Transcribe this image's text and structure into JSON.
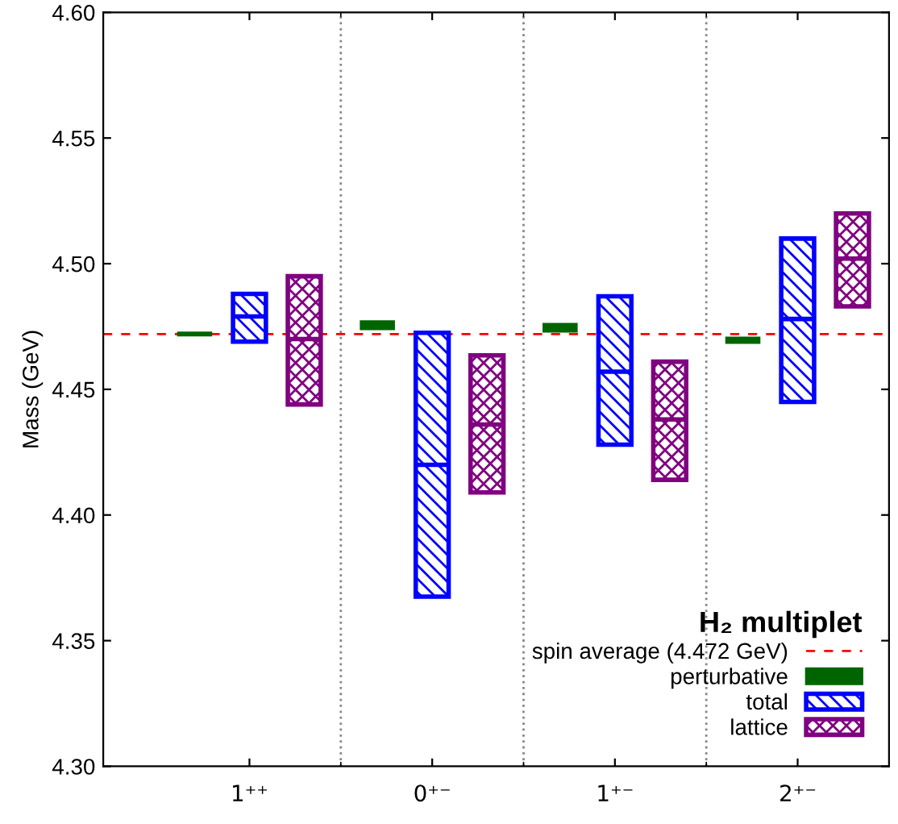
{
  "chart_data": {
    "type": "box",
    "ylabel": "Mass (GeV)",
    "legend_title": "H₂ multiplet",
    "legend": "bottom right",
    "categories": [
      "1⁺⁺",
      "0⁺⁻",
      "1⁺⁻",
      "2⁺⁻"
    ],
    "ylim": [
      4.3,
      4.6
    ],
    "yticks": [
      {
        "value": 4.3,
        "label": "4.30"
      },
      {
        "value": 4.35,
        "label": "4.35"
      },
      {
        "value": 4.4,
        "label": "4.40"
      },
      {
        "value": 4.45,
        "label": "4.45"
      },
      {
        "value": 4.5,
        "label": "4.50"
      },
      {
        "value": 4.55,
        "label": "4.55"
      },
      {
        "value": 4.6,
        "label": "4.60"
      }
    ],
    "grid": false,
    "ref_lines": [
      {
        "axis": "y",
        "value": 4.472,
        "label": "spin average (4.472 GeV)",
        "color": "#ff0000",
        "line_style": "dashed"
      }
    ],
    "series": [
      {
        "name": "perturbative",
        "type": "bar",
        "color": "#006400",
        "base": [
          4.4715,
          4.474,
          4.473,
          4.4685
        ],
        "values": [
          0.001,
          0.003,
          0.003,
          0.002
        ]
      },
      {
        "name": "total",
        "color": "#0000ff",
        "boxes": [
          {
            "low": 4.469,
            "q1": 4.469,
            "median": 4.479,
            "q3": 4.488,
            "high": 4.488
          },
          {
            "low": 4.3675,
            "q1": 4.3675,
            "median": 4.42,
            "q3": 4.4725,
            "high": 4.4725
          },
          {
            "low": 4.428,
            "q1": 4.428,
            "median": 4.457,
            "q3": 4.487,
            "high": 4.487
          },
          {
            "low": 4.445,
            "q1": 4.445,
            "median": 4.478,
            "q3": 4.51,
            "high": 4.51
          }
        ]
      },
      {
        "name": "lattice",
        "color": "#800080",
        "boxes": [
          {
            "low": 4.444,
            "q1": 4.444,
            "median": 4.47,
            "q3": 4.495,
            "high": 4.495
          },
          {
            "low": 4.409,
            "q1": 4.409,
            "median": 4.436,
            "q3": 4.4635,
            "high": 4.4635
          },
          {
            "low": 4.414,
            "q1": 4.414,
            "median": 4.438,
            "q3": 4.461,
            "high": 4.461
          },
          {
            "low": 4.483,
            "q1": 4.483,
            "median": 4.502,
            "q3": 4.52,
            "high": 4.52
          }
        ]
      }
    ]
  }
}
